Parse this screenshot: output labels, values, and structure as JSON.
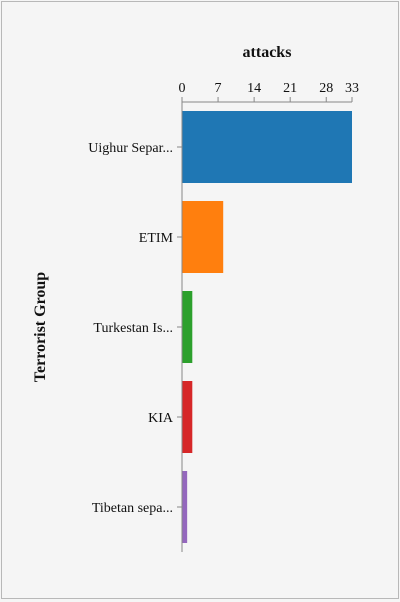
{
  "chart_data": {
    "type": "bar",
    "orientation": "horizontal",
    "categories": [
      "Uighur Separ...",
      "ETIM",
      "Turkestan Is...",
      "KIA",
      "Tibetan sepa..."
    ],
    "values": [
      33,
      8,
      2,
      2,
      1
    ],
    "colors": [
      "#1f77b4",
      "#ff7f0e",
      "#2ca02c",
      "#d62728",
      "#9467bd"
    ],
    "x_ticks": [
      0,
      7,
      14,
      21,
      28,
      33
    ],
    "xlim": [
      0,
      33
    ],
    "xlabel": "attacks",
    "ylabel": "Terrorist Group",
    "xaxis_position": "top",
    "grid": false,
    "legend": "none"
  }
}
